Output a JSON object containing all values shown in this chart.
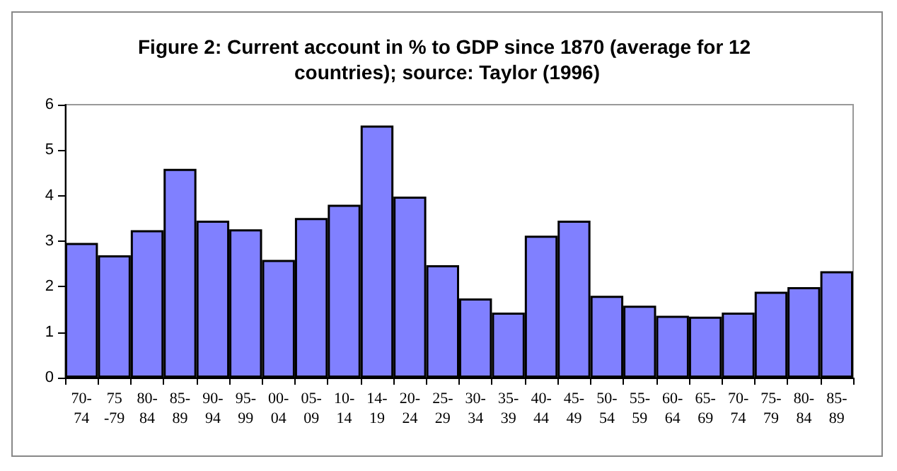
{
  "chart_data": {
    "type": "bar",
    "title": "Figure 2: Current account in % to GDP since 1870 (average for 12 countries); source: Taylor (1996)",
    "categories": [
      "70-\n74",
      "75\n-79",
      "80-\n84",
      "85-\n89",
      "90-\n94",
      "95-\n99",
      "00-\n04",
      "05-\n09",
      "10-\n14",
      "14-\n19",
      "20-\n24",
      "25-\n29",
      "30-\n34",
      "35-\n39",
      "40-\n44",
      "45-\n49",
      "50-\n54",
      "55-\n59",
      "60-\n64",
      "65-\n69",
      "70-\n74",
      "75-\n79",
      "80-\n84",
      "85-\n89"
    ],
    "values": [
      2.96,
      2.69,
      3.24,
      4.59,
      3.45,
      3.26,
      2.59,
      3.51,
      3.8,
      5.54,
      3.98,
      2.47,
      1.74,
      1.43,
      3.12,
      3.45,
      1.8,
      1.58,
      1.36,
      1.34,
      1.43,
      1.89,
      1.99,
      2.34
    ],
    "color": "#8080ff",
    "ylim": [
      0,
      6
    ],
    "yticks": [
      0,
      1,
      2,
      3,
      4,
      5,
      6
    ],
    "grid": false
  }
}
